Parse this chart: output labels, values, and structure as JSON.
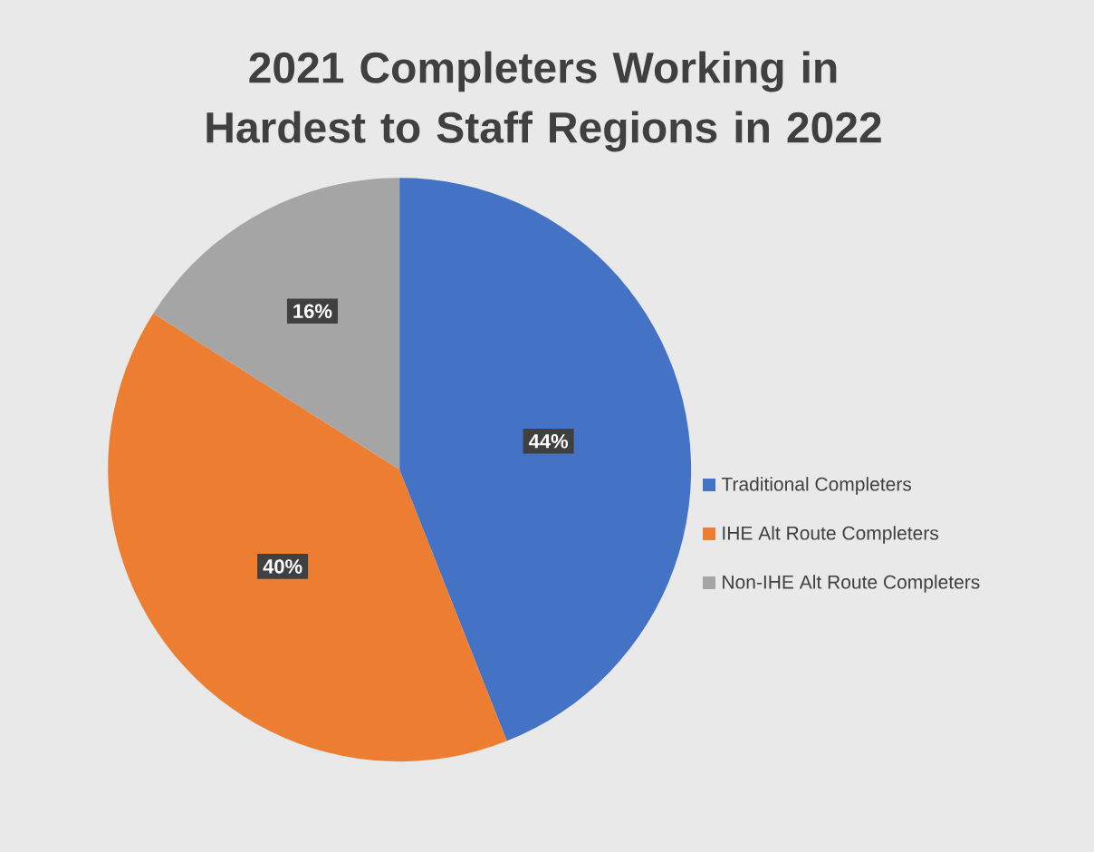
{
  "chart_data": {
    "type": "pie",
    "title": "2021 Completers Working in Hardest to Staff Regions in 2022",
    "categories": [
      "Traditional Completers",
      "IHE Alt Route Completers",
      "Non-IHE Alt Route Completers"
    ],
    "values": [
      44,
      40,
      16
    ],
    "value_labels": [
      "44%",
      "40%",
      "16%"
    ],
    "colors": [
      "#4472c4",
      "#ed7d31",
      "#a5a5a5"
    ],
    "legend": "right"
  }
}
